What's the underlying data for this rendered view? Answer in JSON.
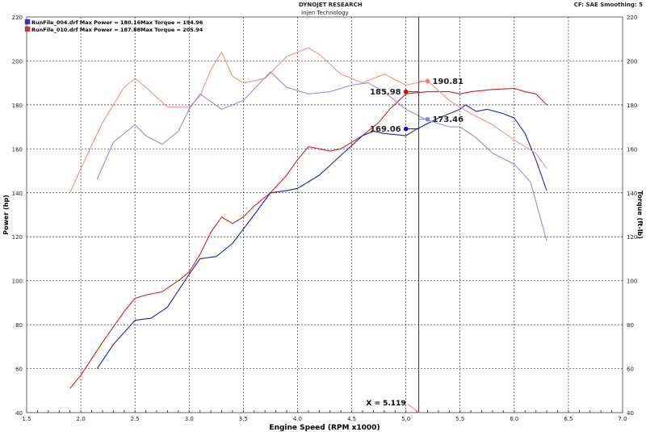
{
  "header": {
    "title": "DYNOJET RESEARCH",
    "subtitle": "Injen Technology",
    "settings": "CF: SAE  Smoothing: 5"
  },
  "chart_data": {
    "type": "line",
    "xlabel": "Engine Speed (RPM x1000)",
    "ylabel": "Power (hp)",
    "y2label": "Torque (ft-lb)",
    "xlim": [
      1.5,
      7.0
    ],
    "ylim": [
      40,
      220
    ],
    "xticks": [
      "1.5",
      "2.0",
      "2.5",
      "3.0",
      "3.5",
      "4.0",
      "4.5",
      "5.0",
      "5.5",
      "6.0",
      "6.5",
      "7.0"
    ],
    "yticks": [
      "40",
      "60",
      "80",
      "100",
      "120",
      "140",
      "160",
      "180",
      "200",
      "220"
    ],
    "grid": true,
    "legend": [
      {
        "label": "RunFile_004.drf Max Power = 180.16",
        "torque": "Max Torque = 194.96",
        "color": "#3030d0"
      },
      {
        "label": "RunFile_010.drf Max Power = 187.88",
        "torque": "Max Torque = 205.94",
        "color": "#e03030"
      }
    ],
    "cursor": {
      "x": 5.119,
      "label": "X = 5.119"
    },
    "markers": [
      {
        "x": 5.0,
        "y": 185.98,
        "label": "185.98",
        "color": "#e00000"
      },
      {
        "x": 5.2,
        "y": 190.81,
        "label": "190.81",
        "color": "#f08080"
      },
      {
        "x": 5.0,
        "y": 169.06,
        "label": "169.06",
        "color": "#0000e0"
      },
      {
        "x": 5.2,
        "y": 173.46,
        "label": "173.46",
        "color": "#8080f0"
      }
    ],
    "series": [
      {
        "file": "RunFile_010.drf",
        "quantity": "power",
        "color": "#d02020",
        "points": [
          [
            1.9,
            51
          ],
          [
            2.0,
            57
          ],
          [
            2.2,
            72
          ],
          [
            2.4,
            86
          ],
          [
            2.5,
            92
          ],
          [
            2.6,
            93.5
          ],
          [
            2.75,
            95
          ],
          [
            2.9,
            100
          ],
          [
            3.0,
            104
          ],
          [
            3.1,
            112
          ],
          [
            3.2,
            122
          ],
          [
            3.3,
            129
          ],
          [
            3.4,
            126
          ],
          [
            3.5,
            129
          ],
          [
            3.6,
            134
          ],
          [
            3.75,
            140
          ],
          [
            3.9,
            148
          ],
          [
            4.0,
            155
          ],
          [
            4.1,
            161
          ],
          [
            4.2,
            160
          ],
          [
            4.3,
            159
          ],
          [
            4.4,
            160
          ],
          [
            4.6,
            166
          ],
          [
            4.75,
            172
          ],
          [
            4.85,
            178
          ],
          [
            5.0,
            185
          ],
          [
            5.2,
            186
          ],
          [
            5.4,
            186
          ],
          [
            5.5,
            185
          ],
          [
            5.6,
            186
          ],
          [
            5.8,
            187
          ],
          [
            6.0,
            187.5
          ],
          [
            6.1,
            186
          ],
          [
            6.2,
            185
          ],
          [
            6.3,
            180
          ]
        ]
      },
      {
        "file": "RunFile_004.drf",
        "quantity": "power",
        "color": "#2020c0",
        "points": [
          [
            2.15,
            60
          ],
          [
            2.3,
            71
          ],
          [
            2.5,
            82
          ],
          [
            2.65,
            83
          ],
          [
            2.8,
            88
          ],
          [
            3.0,
            103
          ],
          [
            3.1,
            110
          ],
          [
            3.25,
            111
          ],
          [
            3.4,
            117
          ],
          [
            3.6,
            130
          ],
          [
            3.75,
            140
          ],
          [
            3.9,
            141
          ],
          [
            4.0,
            142
          ],
          [
            4.2,
            148
          ],
          [
            4.4,
            157
          ],
          [
            4.6,
            166
          ],
          [
            4.7,
            168
          ],
          [
            4.8,
            167
          ],
          [
            5.0,
            166
          ],
          [
            5.1,
            169
          ],
          [
            5.3,
            174
          ],
          [
            5.5,
            178
          ],
          [
            5.55,
            180
          ],
          [
            5.65,
            177
          ],
          [
            5.75,
            178
          ],
          [
            5.9,
            176
          ],
          [
            6.0,
            174
          ],
          [
            6.1,
            167
          ],
          [
            6.2,
            155
          ],
          [
            6.3,
            141
          ]
        ]
      },
      {
        "file": "RunFile_010.drf",
        "quantity": "torque",
        "color": "#f09090",
        "points": [
          [
            1.9,
            140
          ],
          [
            2.0,
            151
          ],
          [
            2.2,
            172
          ],
          [
            2.4,
            188
          ],
          [
            2.5,
            192
          ],
          [
            2.6,
            188
          ],
          [
            2.8,
            179
          ],
          [
            3.0,
            179
          ],
          [
            3.1,
            184
          ],
          [
            3.2,
            196
          ],
          [
            3.3,
            204
          ],
          [
            3.4,
            193
          ],
          [
            3.5,
            190
          ],
          [
            3.7,
            192
          ],
          [
            3.9,
            202
          ],
          [
            4.1,
            206
          ],
          [
            4.2,
            203
          ],
          [
            4.4,
            194
          ],
          [
            4.6,
            190
          ],
          [
            4.8,
            194
          ],
          [
            5.0,
            189
          ],
          [
            5.2,
            191
          ],
          [
            5.4,
            182
          ],
          [
            5.6,
            176
          ],
          [
            5.8,
            171
          ],
          [
            6.0,
            164
          ],
          [
            6.2,
            158
          ],
          [
            6.3,
            151
          ]
        ]
      },
      {
        "file": "RunFile_004.drf",
        "quantity": "torque",
        "color": "#9090e8",
        "points": [
          [
            2.15,
            146
          ],
          [
            2.3,
            163
          ],
          [
            2.5,
            171
          ],
          [
            2.6,
            166
          ],
          [
            2.75,
            162
          ],
          [
            2.9,
            168
          ],
          [
            3.0,
            178
          ],
          [
            3.1,
            185
          ],
          [
            3.3,
            178
          ],
          [
            3.5,
            182
          ],
          [
            3.75,
            195
          ],
          [
            3.9,
            188
          ],
          [
            4.1,
            185
          ],
          [
            4.3,
            186
          ],
          [
            4.5,
            189
          ],
          [
            4.65,
            190
          ],
          [
            4.8,
            186
          ],
          [
            5.0,
            178
          ],
          [
            5.2,
            173
          ],
          [
            5.4,
            170
          ],
          [
            5.5,
            170
          ],
          [
            5.65,
            165
          ],
          [
            5.8,
            158
          ],
          [
            6.0,
            153
          ],
          [
            6.15,
            145
          ],
          [
            6.3,
            118
          ]
        ]
      }
    ]
  }
}
